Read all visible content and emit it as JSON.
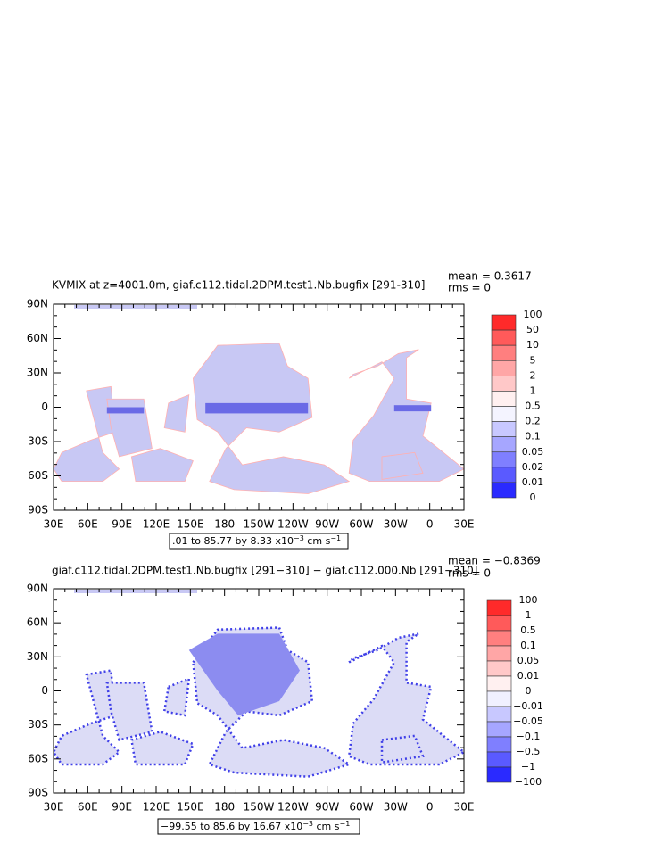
{
  "panels": [
    {
      "title": "KVMIX at z=4001.0m, giaf.c112.tidal.2DPM.test1.Nb.bugfix [291-310]",
      "mean": "mean = 0.3617",
      "rms": "rms = 0",
      "lat_labels": [
        "90N",
        "60N",
        "30N",
        "0",
        "30S",
        "60S",
        "90S"
      ],
      "lon_labels": [
        "30E",
        "60E",
        "90E",
        "120E",
        "150E",
        "180",
        "150W",
        "120W",
        "90W",
        "60W",
        "30W",
        "0",
        "30E"
      ],
      "colorbar_labels": [
        "100",
        "50",
        "10",
        "5",
        "2",
        "1",
        "0.5",
        "0.2",
        "0.1",
        "0.05",
        "0.02",
        "0.01",
        "0"
      ],
      "colorbar_colors": [
        "#ff2a2a",
        "#ff5a5a",
        "#ff7f7f",
        "#ffa6a6",
        "#ffc8c8",
        "#fff0f0",
        "#f4f4ff",
        "#c8c8ff",
        "#a6a6ff",
        "#7f7fff",
        "#5a5aff",
        "#2a2aff"
      ],
      "info": [
        ".01 to 85.77 by 8.33 x10",
        "−3",
        " cm s",
        "−1"
      ]
    },
    {
      "title": "giaf.c112.tidal.2DPM.test1.Nb.bugfix [291−310] − giaf.c112.000.Nb [291−310]",
      "mean": "mean = −0.8369",
      "rms": "rms = 0",
      "lat_labels": [
        "90N",
        "60N",
        "30N",
        "0",
        "30S",
        "60S",
        "90S"
      ],
      "lon_labels": [
        "30E",
        "60E",
        "90E",
        "120E",
        "150E",
        "180",
        "150W",
        "120W",
        "90W",
        "60W",
        "30W",
        "0",
        "30E"
      ],
      "colorbar_labels": [
        "100",
        "1",
        "0.5",
        "0.1",
        "0.05",
        "0.01",
        "0",
        "−0.01",
        "−0.05",
        "−0.1",
        "−0.5",
        "−1",
        "−100"
      ],
      "colorbar_colors": [
        "#ff2a2a",
        "#ff5a5a",
        "#ff7f7f",
        "#ffa6a6",
        "#ffc8c8",
        "#fff0f0",
        "#f0f0ff",
        "#c8c8ff",
        "#a6a6ff",
        "#7f7fff",
        "#5a5aff",
        "#2a2aff"
      ],
      "info": [
        "−99.55 to 85.6 by 16.67 x10",
        "−3",
        " cm s",
        "−1"
      ]
    }
  ]
}
